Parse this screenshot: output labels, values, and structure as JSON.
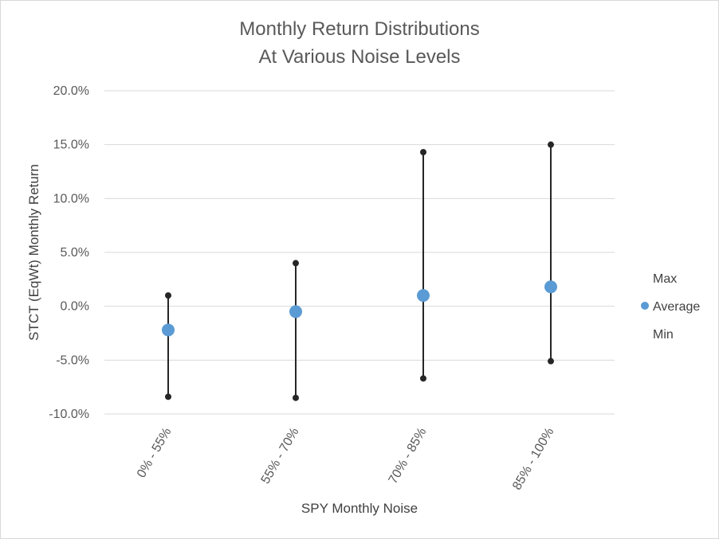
{
  "chart_data": {
    "type": "scatter",
    "title_lines": [
      "Monthly Return Distributions",
      "At Various Noise Levels"
    ],
    "xlabel": "SPY Monthly Noise",
    "ylabel": "STCT (EqWt) Monthly Return",
    "categories": [
      "0% - 55%",
      "55% - 70%",
      "70% - 85%",
      "85% - 100%"
    ],
    "ylim": [
      -10,
      20
    ],
    "yticks": [
      20,
      15,
      10,
      5,
      0,
      -5,
      -10
    ],
    "ytick_labels": [
      "20.0%",
      "15.0%",
      "10.0%",
      "5.0%",
      "0.0%",
      "-5.0%",
      "-10.0%"
    ],
    "grid": true,
    "legend_position": "right",
    "series": [
      {
        "name": "Max",
        "values": [
          1.0,
          4.0,
          14.3,
          15.0
        ],
        "color": "#262626"
      },
      {
        "name": "Average",
        "values": [
          -2.2,
          -0.5,
          1.0,
          1.8
        ],
        "color": "#5b9bd5"
      },
      {
        "name": "Min",
        "values": [
          -8.4,
          -8.5,
          -6.7,
          -5.1
        ],
        "color": "#262626"
      }
    ]
  }
}
